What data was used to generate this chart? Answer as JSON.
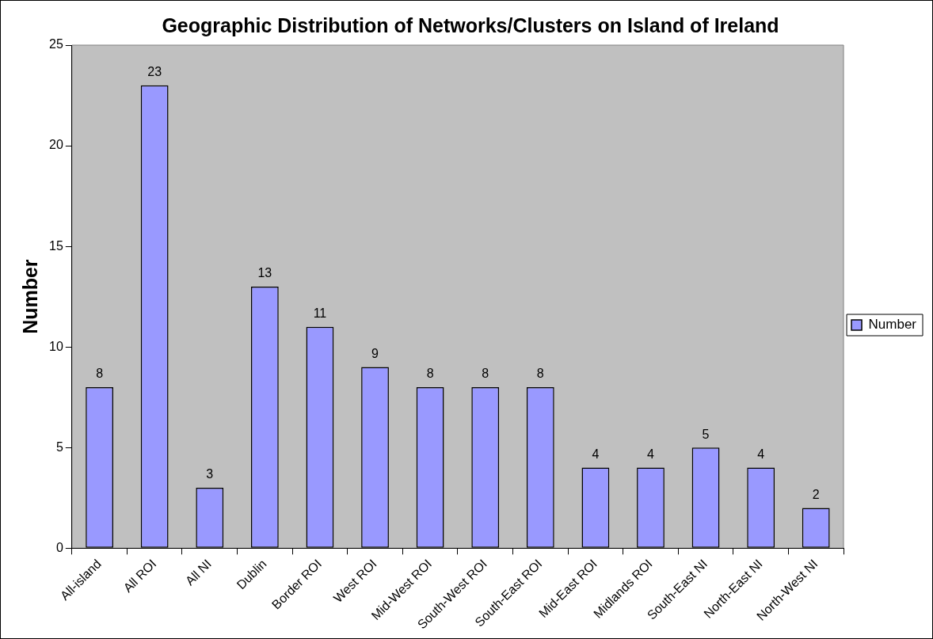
{
  "chart_data": {
    "type": "bar",
    "title": "Geographic Distribution of Networks/Clusters on Island of Ireland",
    "ylabel": "Number",
    "categories": [
      "All-island",
      "All ROI",
      "All NI",
      "Dublin",
      "Border ROI",
      "West ROI",
      "Mid-West ROI",
      "South-West ROI",
      "South-East ROI",
      "Mid-East ROI",
      "Midlands ROI",
      "South-East NI",
      "North-East NI",
      "North-West NI"
    ],
    "series": [
      {
        "name": "Number",
        "color": "#9999ff",
        "values": [
          8,
          23,
          3,
          13,
          11,
          9,
          8,
          8,
          8,
          4,
          4,
          5,
          4,
          2
        ]
      }
    ],
    "ylim": [
      0,
      25
    ],
    "yticks": [
      0,
      5,
      10,
      15,
      20,
      25
    ],
    "grid": false,
    "legend": "right",
    "data_labels": true
  }
}
